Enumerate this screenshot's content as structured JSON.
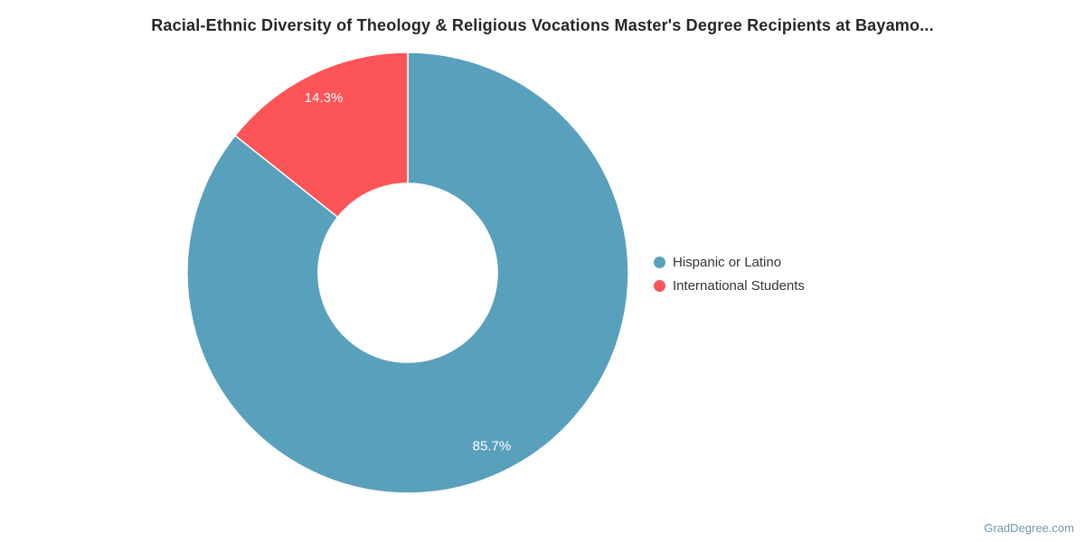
{
  "chart_data": {
    "type": "pie",
    "subtype": "donut",
    "title": "Racial-Ethnic Diversity of Theology & Religious Vocations Master's Degree Recipients at Bayamo...",
    "series": [
      {
        "name": "Hispanic or Latino",
        "value": 85.7,
        "label": "85.7%",
        "color": "#59A0BD"
      },
      {
        "name": "International Students",
        "value": 14.3,
        "label": "14.3%",
        "color": "#FC5457"
      }
    ],
    "start_angle_deg": 0,
    "direction": "clockwise",
    "inner_radius_ratio": 0.406,
    "slice_border_color": "#FFFFFF",
    "data_label_color": "#FFFFFF",
    "legend_position": "right",
    "background": "#FFFFFF"
  },
  "watermark": {
    "text": "GradDegree.com",
    "color": "#6E99AD"
  }
}
